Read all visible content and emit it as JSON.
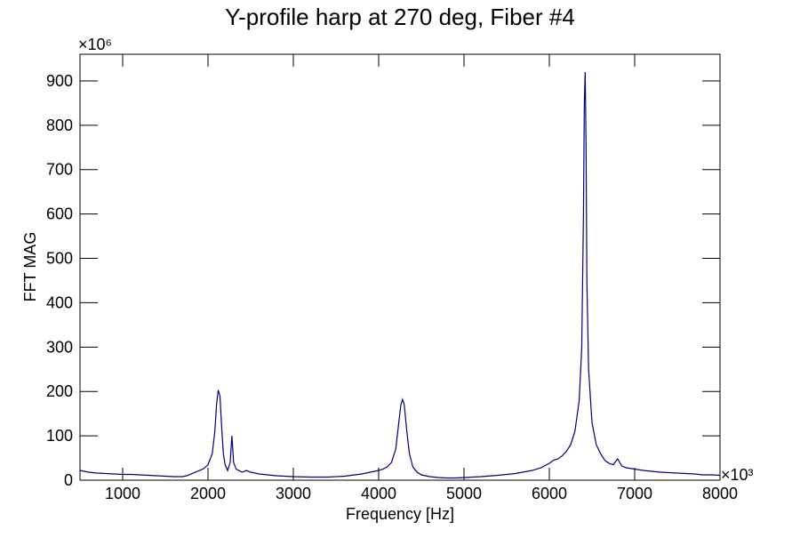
{
  "chart_data": {
    "type": "line",
    "title": "Y-profile harp at 270 deg, Fiber #4",
    "x_label": "Frequency [Hz]",
    "y_label": "FFT MAG",
    "x_multiplier": "×10³",
    "y_multiplier": "×10⁶",
    "xlim": [
      500,
      8000
    ],
    "ylim": [
      0,
      960
    ],
    "xticks": [
      1000,
      2000,
      3000,
      4000,
      5000,
      6000,
      7000,
      8000
    ],
    "yticks": [
      0,
      100,
      200,
      300,
      400,
      500,
      600,
      700,
      800,
      900
    ],
    "grid": false,
    "x": [
      500,
      600,
      700,
      800,
      900,
      1000,
      1100,
      1200,
      1300,
      1400,
      1500,
      1600,
      1700,
      1750,
      1800,
      1850,
      1900,
      1950,
      2000,
      2050,
      2080,
      2100,
      2120,
      2140,
      2160,
      2180,
      2200,
      2230,
      2260,
      2280,
      2300,
      2330,
      2400,
      2450,
      2500,
      2600,
      2700,
      2800,
      2900,
      3000,
      3200,
      3400,
      3600,
      3800,
      3900,
      4000,
      4050,
      4100,
      4150,
      4200,
      4230,
      4260,
      4280,
      4300,
      4330,
      4360,
      4400,
      4450,
      4500,
      4600,
      4700,
      4800,
      4900,
      5000,
      5200,
      5400,
      5600,
      5800,
      5900,
      6000,
      6050,
      6100,
      6150,
      6200,
      6250,
      6300,
      6350,
      6380,
      6400,
      6410,
      6420,
      6430,
      6440,
      6460,
      6500,
      6550,
      6600,
      6650,
      6700,
      6750,
      6800,
      6850,
      6900,
      7000,
      7100,
      7200,
      7300,
      7400,
      7500,
      7600,
      7700,
      7800,
      7900,
      8000
    ],
    "series": [
      {
        "name": "FFT",
        "color": "#000080",
        "values": [
          22,
          18,
          16,
          15,
          14,
          13,
          13,
          12,
          11,
          10,
          9,
          8,
          8,
          10,
          14,
          18,
          22,
          26,
          35,
          60,
          110,
          170,
          203,
          190,
          120,
          60,
          35,
          22,
          40,
          100,
          40,
          25,
          18,
          22,
          18,
          14,
          12,
          10,
          9,
          8,
          7,
          7,
          9,
          14,
          18,
          22,
          25,
          30,
          40,
          70,
          120,
          170,
          182,
          170,
          110,
          60,
          30,
          18,
          12,
          8,
          6,
          5,
          5,
          6,
          8,
          11,
          15,
          22,
          28,
          38,
          45,
          48,
          55,
          65,
          80,
          110,
          180,
          300,
          600,
          850,
          920,
          760,
          450,
          250,
          130,
          80,
          60,
          45,
          38,
          35,
          48,
          32,
          28,
          25,
          22,
          20,
          18,
          17,
          16,
          15,
          14,
          12,
          12,
          11
        ]
      }
    ]
  }
}
